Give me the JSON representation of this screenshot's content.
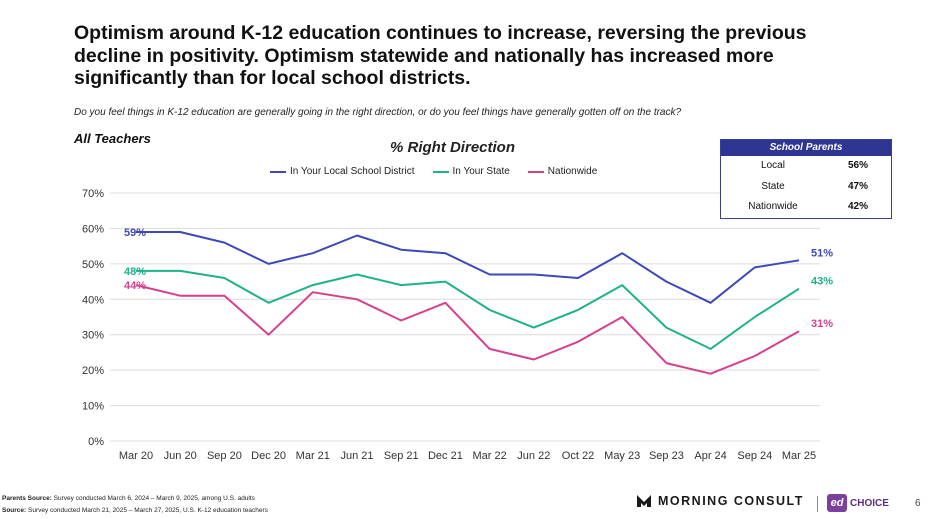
{
  "headline": "Optimism around K-12 education continues to increase, reversing the previous decline in positivity. Optimism statewide and nationally has increased more significantly than for local school districts.",
  "question": "Do you feel things in K-12 education are generally going in the right direction, or do you feel things have generally gotten off on the track?",
  "segment_label": "All Teachers",
  "chart_data": {
    "type": "line",
    "title": "% Right Direction",
    "categories": [
      "Mar 20",
      "Jun 20",
      "Sep 20",
      "Dec 20",
      "Mar 21",
      "Jun 21",
      "Sep 21",
      "Dec 21",
      "Mar 22",
      "Jun 22",
      "Oct 22",
      "May 23",
      "Sep 23",
      "Apr 24",
      "Sep 24",
      "Mar 25"
    ],
    "y_ticks": [
      "0%",
      "10%",
      "20%",
      "30%",
      "40%",
      "50%",
      "60%",
      "70%"
    ],
    "ylim": [
      0,
      70
    ],
    "grid": true,
    "legend_position": "top-center",
    "series": [
      {
        "name": "In Your Local School District",
        "color": "#3f48b8",
        "values": [
          59,
          59,
          56,
          50,
          53,
          58,
          54,
          53,
          47,
          47,
          46,
          53,
          45,
          39,
          49,
          51
        ],
        "start_label": "59%",
        "end_label": "51%"
      },
      {
        "name": "In Your State",
        "color": "#1db38a",
        "values": [
          48,
          48,
          46,
          39,
          44,
          47,
          44,
          45,
          37,
          32,
          37,
          44,
          32,
          26,
          35,
          43
        ],
        "start_label": "48%",
        "end_label": "43%"
      },
      {
        "name": "Nationwide",
        "color": "#d63f8e",
        "values": [
          44,
          41,
          41,
          30,
          42,
          40,
          34,
          39,
          26,
          23,
          28,
          35,
          22,
          19,
          24,
          31
        ],
        "start_label": "44%",
        "end_label": "31%"
      }
    ]
  },
  "school_parents": {
    "title": "School Parents",
    "rows": [
      {
        "label": "Local",
        "value": "56%"
      },
      {
        "label": "State",
        "value": "47%"
      },
      {
        "label": "Nationwide",
        "value": "42%"
      }
    ]
  },
  "footnotes": {
    "parents_label": "Parents Source:",
    "parents_text": " Survey conducted March 6, 2024 – March 9, 2025, among U.S. adults",
    "teachers_label": "Source:",
    "teachers_text": " Survey conducted March 21, 2025 – March 27, 2025, U.S. K-12 education teachers"
  },
  "logos": {
    "morning_consult": "MORNING CONSULT",
    "edchoice_mark": "ed",
    "edchoice_text": "CHOICE"
  },
  "page_number": "6"
}
